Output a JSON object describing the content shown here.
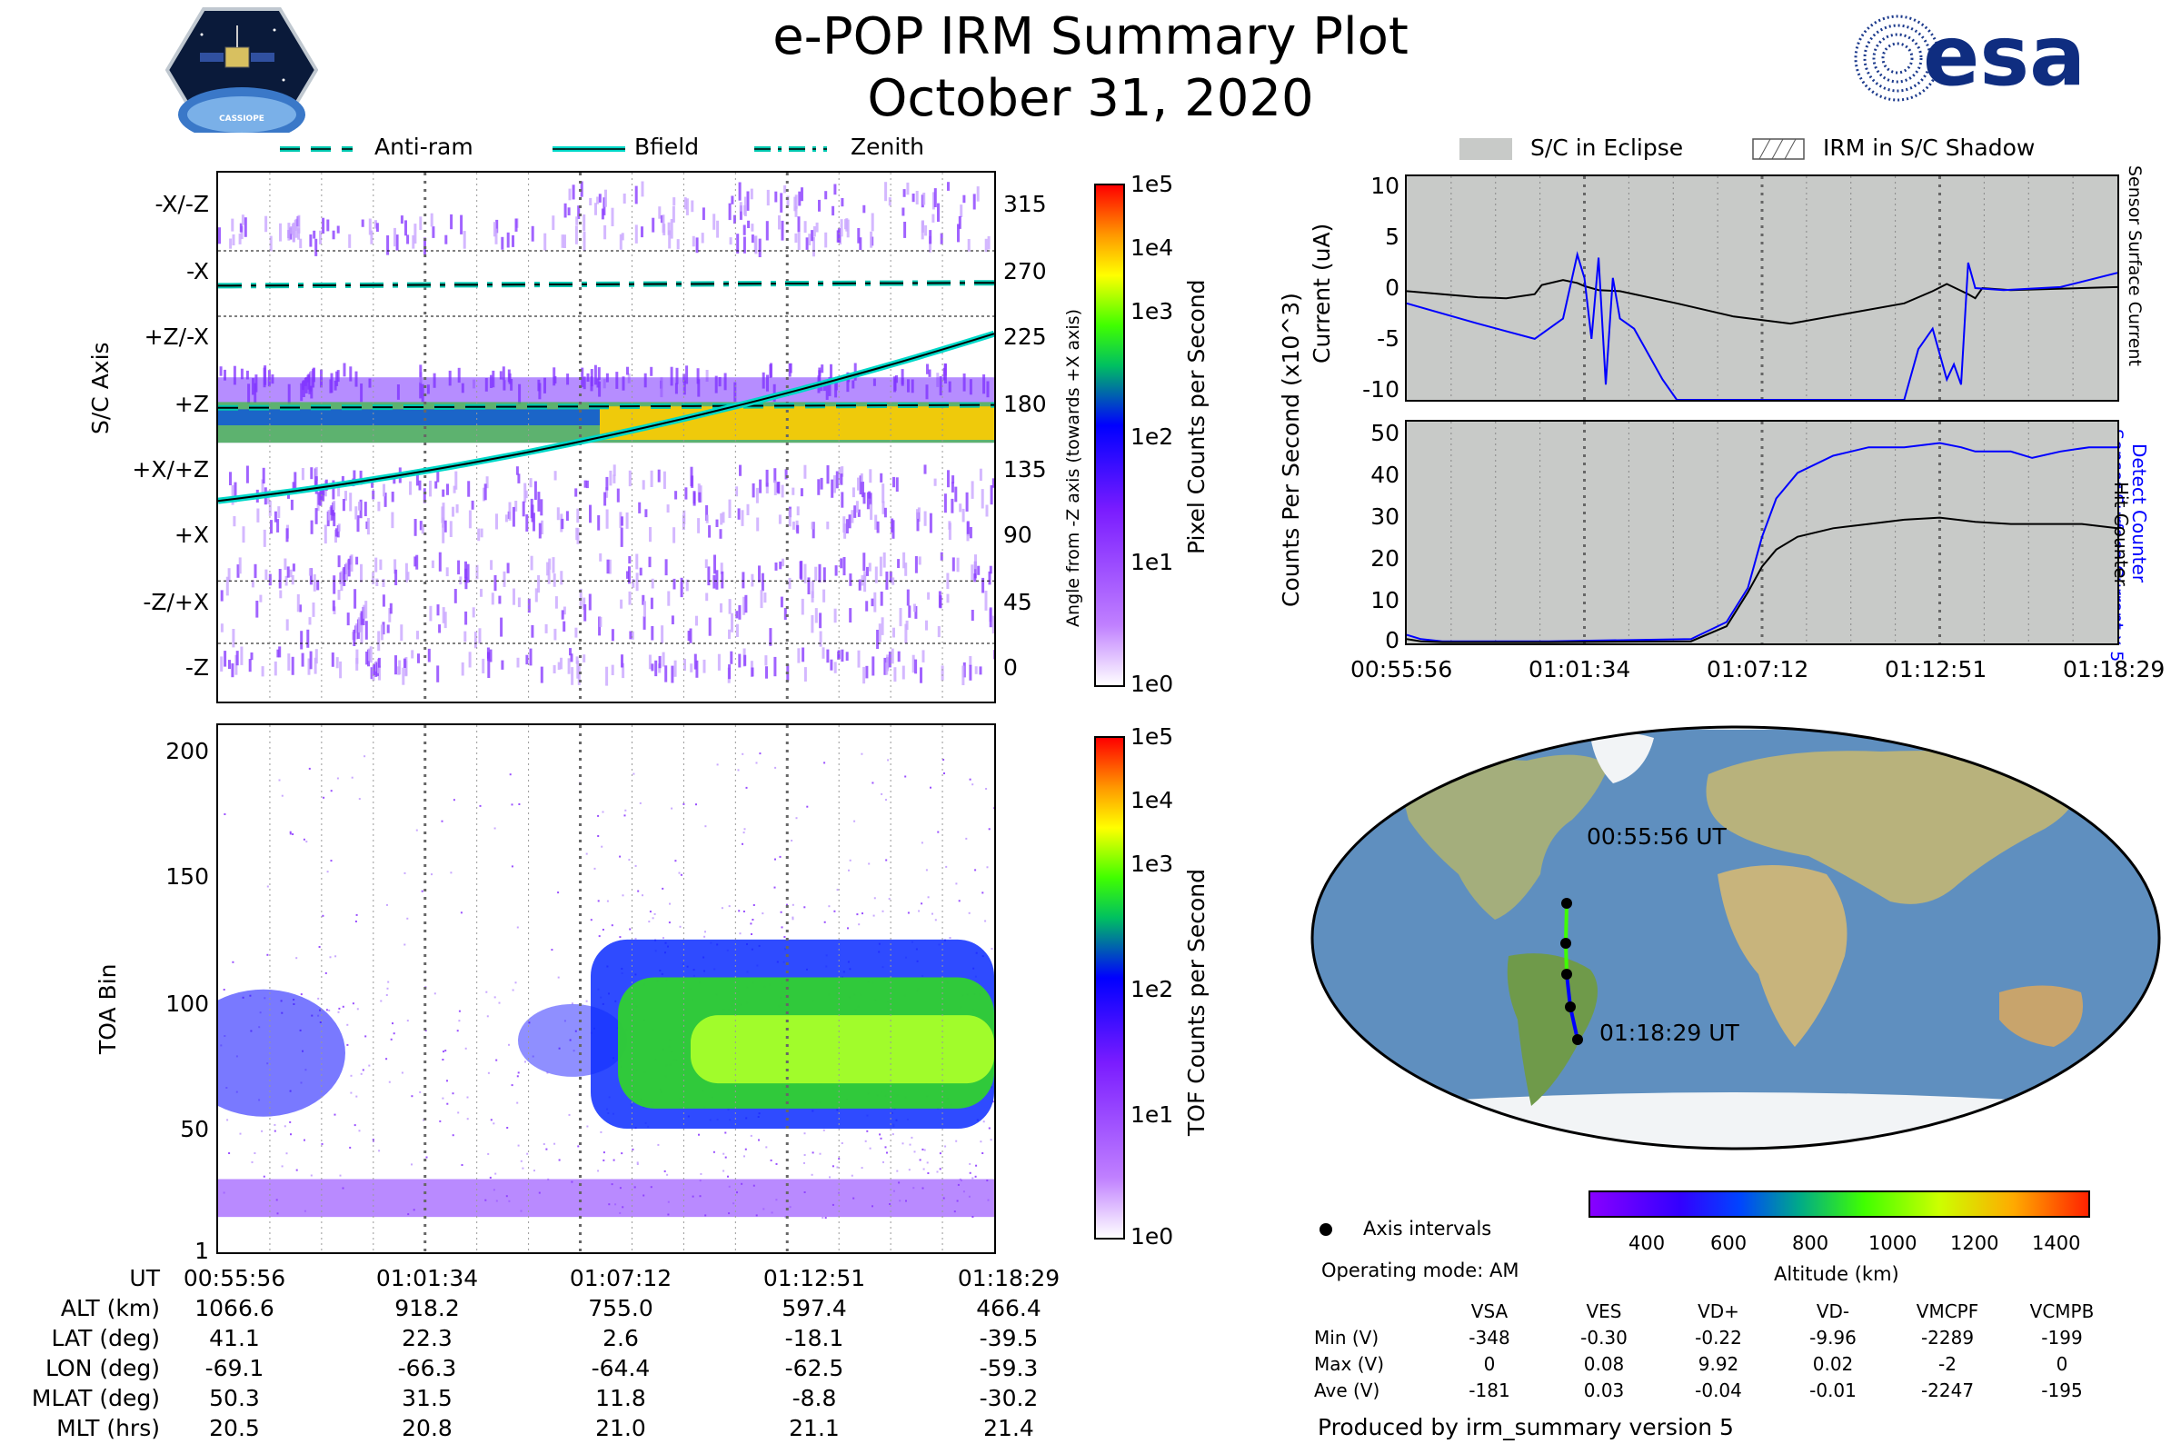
{
  "header": {
    "title": "e-POP IRM Summary Plot",
    "date": "October 31, 2020",
    "logo_text": "esa",
    "badge_text": "CASSIOPE"
  },
  "legend_top": {
    "antiram": "Anti-ram",
    "bfield": "Bfield",
    "zenith": "Zenith"
  },
  "legend_right": {
    "eclipse": "S/C in Eclipse",
    "shadow": "IRM in S/C Shadow"
  },
  "colors": {
    "antiram": "#00c8b0",
    "bfield": "#00d8c8",
    "eclipse": "#c8cac8",
    "ground_track_low": "#0000ff",
    "ground_track_high": "#40ff00"
  },
  "icons": [
    "cassiope-badge-icon",
    "esa-logo-icon"
  ],
  "chart_data": [
    {
      "type": "heatmap",
      "name": "S/C Axis angular distribution",
      "ylabel": "S/C Axis",
      "ylabel_right": "Angle from -Z axis (towards +X axis)",
      "y_ticks_left": [
        "-X/-Z",
        "-X",
        "+Z/-X",
        "+Z",
        "+X/+Z",
        "+X",
        "-Z/+X",
        "-Z"
      ],
      "y_ticks_right": [
        "315",
        "270",
        "225",
        "180",
        "135",
        "90",
        "45",
        "0"
      ],
      "colorbar_label": "Pixel Counts per Second",
      "colorbar_ticks": [
        "1e5",
        "1e4",
        "1e3",
        "1e2",
        "1e1",
        "1e0"
      ],
      "lines": [
        {
          "name": "Zenith",
          "angle_start": 268,
          "angle_end": 270
        },
        {
          "name": "Anti-ram",
          "angle_start": 184,
          "angle_end": 186
        },
        {
          "name": "Bfield",
          "angle_start": 120,
          "angle_end": 235
        }
      ]
    },
    {
      "type": "heatmap",
      "name": "TOA Bin",
      "ylabel": "TOA Bin",
      "y_ticks": [
        "200",
        "150",
        "100",
        "50",
        "1"
      ],
      "ylim": [
        1,
        210
      ],
      "colorbar_label": "TOF Counts per Second",
      "colorbar_ticks": [
        "1e5",
        "1e4",
        "1e3",
        "1e2",
        "1e1",
        "1e0"
      ]
    },
    {
      "type": "line",
      "name": "Current",
      "ylabel": "Current (uA)",
      "ylim": [
        -11,
        11
      ],
      "y_ticks": [
        "10",
        "5",
        "0",
        "-5",
        "-10"
      ],
      "right_label_black": "Sensor Surface Current",
      "right_label_blue": "Sensor Surface Current x 5",
      "series": [
        {
          "name": "Sensor Surface Current",
          "color": "#000000",
          "x": [
            0,
            5,
            10,
            14,
            18,
            19,
            22,
            24,
            25,
            27,
            30,
            38,
            46,
            54,
            62,
            70,
            74,
            76,
            79,
            80,
            81,
            85,
            100
          ],
          "y": [
            -0.3,
            -0.6,
            -0.9,
            -1.0,
            -0.6,
            0.3,
            0.8,
            0.5,
            0.2,
            -0.2,
            -0.3,
            -1.5,
            -2.8,
            -3.5,
            -2.5,
            -1.5,
            -0.3,
            0.4,
            -0.6,
            -1.0,
            0.0,
            -0.2,
            0.1
          ]
        },
        {
          "name": "Sensor Surface Current x 5",
          "color": "#0000ff",
          "x": [
            0,
            10,
            18,
            19,
            22,
            24,
            25,
            26,
            27,
            28,
            29,
            30,
            32,
            34,
            36,
            38,
            70,
            72,
            74,
            76,
            77,
            78,
            79,
            80,
            84,
            92,
            100
          ],
          "y": [
            -1.5,
            -3.5,
            -5.0,
            -4.5,
            -3.0,
            3.3,
            1.0,
            -5.0,
            3.0,
            -9.5,
            1.0,
            -3.0,
            -4.0,
            -6.5,
            -9.0,
            -11,
            -11,
            -6.0,
            -4.0,
            -9.0,
            -7.5,
            -9.5,
            2.5,
            0.0,
            -0.2,
            0.1,
            1.5
          ]
        }
      ]
    },
    {
      "type": "line",
      "name": "Counts",
      "ylabel": "Counts Per Second (x10^3)",
      "ylim": [
        0,
        52
      ],
      "y_ticks": [
        "50",
        "40",
        "30",
        "20",
        "10",
        "0"
      ],
      "x_ticks": [
        "00:55:56",
        "01:01:34",
        "01:07:12",
        "01:12:51",
        "01:18:29"
      ],
      "right_label_blue": "Detect Counter",
      "right_label_black": "Hit Counter",
      "series": [
        {
          "name": "Detect Counter",
          "color": "#0000ff",
          "x": [
            0,
            2,
            5,
            20,
            40,
            45,
            48,
            50,
            52,
            55,
            60,
            65,
            70,
            75,
            78,
            80,
            85,
            88,
            92,
            96,
            100
          ],
          "y": [
            2,
            1,
            0.5,
            0.5,
            1,
            5,
            13,
            25,
            34,
            40,
            44,
            46,
            46,
            47,
            46,
            45,
            45,
            43.5,
            45,
            46,
            46
          ]
        },
        {
          "name": "Hit Counter",
          "color": "#000000",
          "x": [
            0,
            2,
            5,
            20,
            40,
            45,
            48,
            50,
            52,
            55,
            60,
            65,
            70,
            75,
            80,
            85,
            90,
            95,
            100
          ],
          "y": [
            1,
            0.5,
            0.3,
            0.3,
            0.5,
            4,
            12,
            18,
            22,
            25,
            27,
            28,
            29,
            29.5,
            28.5,
            28,
            28,
            28,
            27
          ]
        }
      ]
    }
  ],
  "map": {
    "start_label": "00:55:56 UT",
    "end_label": "01:18:29 UT",
    "axis_intervals": "Axis intervals",
    "operating_mode": "Operating mode: AM",
    "altitude_label": "Altitude (km)",
    "altitude_ticks": [
      "400",
      "600",
      "800",
      "1000",
      "1200",
      "1400"
    ]
  },
  "ephemeris": {
    "rows": [
      {
        "label": "UT",
        "values": [
          "00:55:56",
          "01:01:34",
          "01:07:12",
          "01:12:51",
          "01:18:29"
        ]
      },
      {
        "label": "ALT (km)",
        "values": [
          "1066.6",
          "918.2",
          "755.0",
          "597.4",
          "466.4"
        ]
      },
      {
        "label": "LAT (deg)",
        "values": [
          "41.1",
          "22.3",
          "2.6",
          "-18.1",
          "-39.5"
        ]
      },
      {
        "label": "LON (deg)",
        "values": [
          "-69.1",
          "-66.3",
          "-64.4",
          "-62.5",
          "-59.3"
        ]
      },
      {
        "label": "MLAT (deg)",
        "values": [
          "50.3",
          "31.5",
          "11.8",
          "-8.8",
          "-30.2"
        ]
      },
      {
        "label": "MLT (hrs)",
        "values": [
          "20.5",
          "20.8",
          "21.0",
          "21.1",
          "21.4"
        ]
      }
    ]
  },
  "stats": {
    "headers": [
      "",
      "VSA",
      "VES",
      "VD+",
      "VD-",
      "VMCPF",
      "VCMPB"
    ],
    "rows": [
      [
        "Min (V)",
        "-348",
        "-0.30",
        "-0.22",
        "-9.96",
        "-2289",
        "-199"
      ],
      [
        "Max (V)",
        "0",
        "0.08",
        "9.92",
        "0.02",
        "-2",
        "0"
      ],
      [
        "Ave (V)",
        "-181",
        "0.03",
        "-0.04",
        "-0.01",
        "-2247",
        "-195"
      ]
    ]
  },
  "footer": {
    "produced_by": "Produced by irm_summary version 5"
  }
}
